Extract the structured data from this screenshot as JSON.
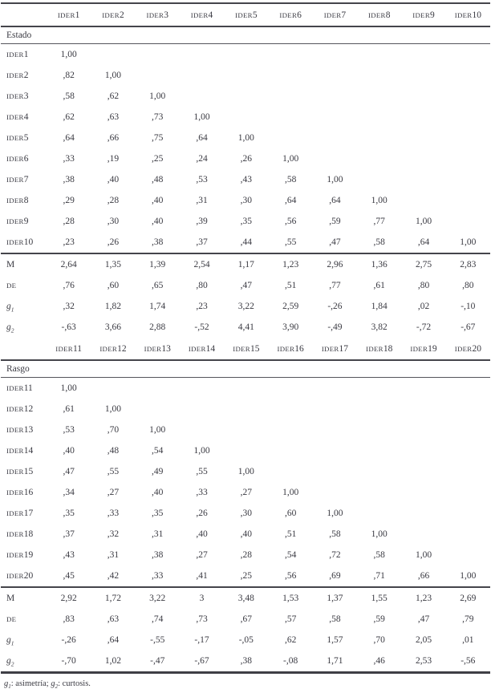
{
  "sections": [
    {
      "title": "Estado",
      "columns": [
        "IDER1",
        "IDER2",
        "IDER3",
        "IDER4",
        "IDER5",
        "IDER6",
        "IDER7",
        "IDER8",
        "IDER9",
        "IDER10"
      ],
      "rows": [
        {
          "label": "IDER1",
          "values": [
            "1,00"
          ]
        },
        {
          "label": "IDER2",
          "values": [
            ",82",
            "1,00"
          ]
        },
        {
          "label": "IDER3",
          "values": [
            ",58",
            ",62",
            "1,00"
          ]
        },
        {
          "label": "IDER4",
          "values": [
            ",62",
            ",63",
            ",73",
            "1,00"
          ]
        },
        {
          "label": "IDER5",
          "values": [
            ",64",
            ",66",
            ",75",
            ",64",
            "1,00"
          ]
        },
        {
          "label": "IDER6",
          "values": [
            ",33",
            ",19",
            ",25",
            ",24",
            ",26",
            "1,00"
          ]
        },
        {
          "label": "IDER7",
          "values": [
            ",38",
            ",40",
            ",48",
            ",53",
            ",43",
            ",58",
            "1,00"
          ]
        },
        {
          "label": "IDER8",
          "values": [
            ",29",
            ",28",
            ",40",
            ",31",
            ",30",
            ",64",
            ",64",
            "1,00"
          ]
        },
        {
          "label": "IDER9",
          "values": [
            ",28",
            ",30",
            ",40",
            ",39",
            ",35",
            ",56",
            ",59",
            ",77",
            "1,00"
          ]
        },
        {
          "label": "IDER10",
          "values": [
            ",23",
            ",26",
            ",38",
            ",37",
            ",44",
            ",55",
            ",47",
            ",58",
            ",64",
            "1,00"
          ]
        }
      ],
      "stats": [
        {
          "label": "M",
          "values": [
            "2,64",
            "1,35",
            "1,39",
            "2,54",
            "1,17",
            "1,23",
            "2,96",
            "1,36",
            "2,75",
            "2,83"
          ]
        },
        {
          "label": "DE",
          "values": [
            ",76",
            ",60",
            ",65",
            ",80",
            ",47",
            ",51",
            ",77",
            ",61",
            ",80",
            ",80"
          ]
        },
        {
          "label": "g1",
          "values": [
            ",32",
            "1,82",
            "1,74",
            ",23",
            "3,22",
            "2,59",
            "-,26",
            "1,84",
            ",02",
            "-,10"
          ]
        },
        {
          "label": "g2",
          "values": [
            "-,63",
            "3,66",
            "2,88",
            "-,52",
            "4,41",
            "3,90",
            "-,49",
            "3,82",
            "-,72",
            "-,67"
          ]
        }
      ]
    },
    {
      "title": "Rasgo",
      "columns": [
        "IDER11",
        "IDER12",
        "IDER13",
        "IDER14",
        "IDER15",
        "IDER16",
        "IDER17",
        "IDER18",
        "IDER19",
        "IDER20"
      ],
      "rows": [
        {
          "label": "IDER11",
          "values": [
            "1,00"
          ]
        },
        {
          "label": "IDER12",
          "values": [
            ",61",
            "1,00"
          ]
        },
        {
          "label": "IDER13",
          "values": [
            ",53",
            ",70",
            "1,00"
          ]
        },
        {
          "label": "IDER14",
          "values": [
            ",40",
            ",48",
            ",54",
            "1,00"
          ]
        },
        {
          "label": "IDER15",
          "values": [
            ",47",
            ",55",
            ",49",
            ",55",
            "1,00"
          ]
        },
        {
          "label": "IDER16",
          "values": [
            ",34",
            ",27",
            ",40",
            ",33",
            ",27",
            "1,00"
          ]
        },
        {
          "label": "IDER17",
          "values": [
            ",35",
            ",33",
            ",35",
            ",26",
            ",30",
            ",60",
            "1,00"
          ]
        },
        {
          "label": "IDER18",
          "values": [
            ",37",
            ",32",
            ",31",
            ",40",
            ",40",
            ",51",
            ",58",
            "1,00"
          ]
        },
        {
          "label": "IDER19",
          "values": [
            ",43",
            ",31",
            ",38",
            ",27",
            ",28",
            ",54",
            ",72",
            ",58",
            "1,00"
          ]
        },
        {
          "label": "IDER20",
          "values": [
            ",45",
            ",42",
            ",33",
            ",41",
            ",25",
            ",56",
            ",69",
            ",71",
            ",66",
            "1,00"
          ]
        }
      ],
      "stats": [
        {
          "label": "M",
          "values": [
            "2,92",
            "1,72",
            "3,22",
            "3",
            "3,48",
            "1,53",
            "1,37",
            "1,55",
            "1,23",
            "2,69"
          ]
        },
        {
          "label": "DE",
          "values": [
            ",83",
            ",63",
            ",74",
            ",73",
            ",67",
            ",57",
            ",58",
            ",59",
            ",47",
            ",79"
          ]
        },
        {
          "label": "g1",
          "values": [
            "-,26",
            ",64",
            "-,55",
            "-,17",
            "-,05",
            ",62",
            "1,57",
            ",70",
            "2,05",
            ",01"
          ]
        },
        {
          "label": "g2",
          "values": [
            "-,70",
            "1,02",
            "-,47",
            "-,67",
            ",38",
            "-,08",
            "1,71",
            ",46",
            "2,53",
            "-,56"
          ]
        }
      ]
    }
  ],
  "footnote": {
    "terms": [
      {
        "symbol": "g",
        "sub": "1",
        "desc": "asimetría"
      },
      {
        "symbol": "g",
        "sub": "2",
        "desc": "curtosis"
      }
    ],
    "colon": ": ",
    "separator": "; ",
    "period": "."
  }
}
